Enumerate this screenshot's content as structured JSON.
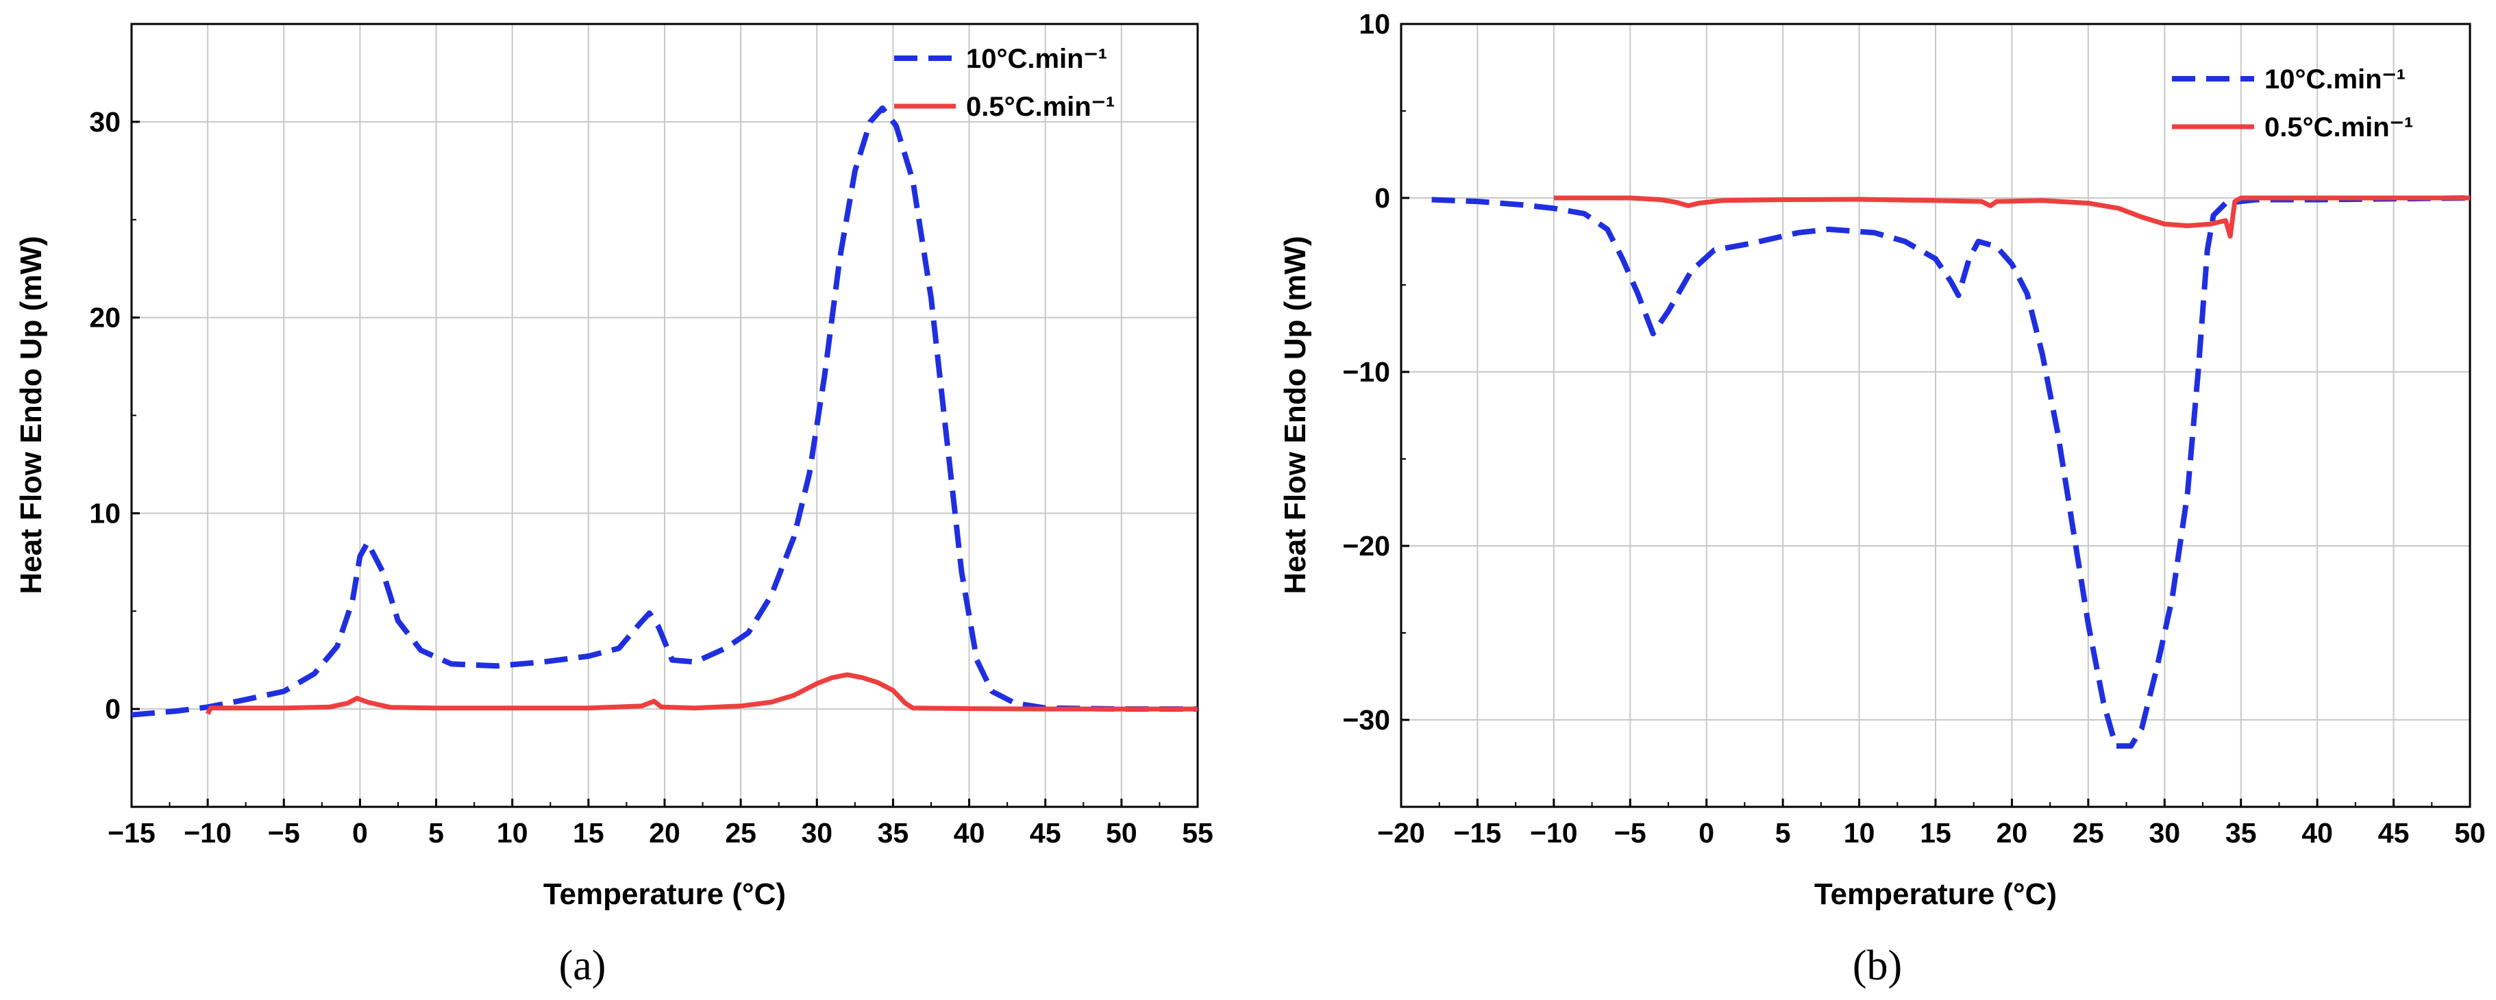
{
  "chart_data": [
    {
      "type": "line",
      "caption": "(a)",
      "xlabel": "Temperature (°C)",
      "ylabel": "Heat Flow Endo Up (mW)",
      "xlim": [
        -15,
        55
      ],
      "ylim": [
        -5,
        35
      ],
      "xticks": [
        -15,
        -10,
        -5,
        0,
        5,
        10,
        15,
        20,
        25,
        30,
        35,
        40,
        45,
        50,
        55
      ],
      "yticks": [
        0,
        10,
        20,
        30
      ],
      "xtick_labels": [
        "−15",
        "−10",
        "−5",
        "0",
        "5",
        "10",
        "15",
        "20",
        "25",
        "30",
        "35",
        "40",
        "45",
        "50",
        "55"
      ],
      "ytick_labels": [
        "0",
        "10",
        "20",
        "30"
      ],
      "grid": true,
      "legend_position": "top-right",
      "series": [
        {
          "name": "10°C.min⁻¹",
          "color": "#1f2fe0",
          "style": "dashed",
          "points": [
            [
              -15,
              -0.3
            ],
            [
              -12,
              -0.1
            ],
            [
              -10,
              0.1
            ],
            [
              -8,
              0.4
            ],
            [
              -5,
              0.9
            ],
            [
              -3,
              1.8
            ],
            [
              -1.5,
              3.2
            ],
            [
              -0.5,
              5.5
            ],
            [
              0,
              7.8
            ],
            [
              0.5,
              8.5
            ],
            [
              1.5,
              7.0
            ],
            [
              2.5,
              4.5
            ],
            [
              4,
              3.0
            ],
            [
              6,
              2.3
            ],
            [
              9,
              2.2
            ],
            [
              12,
              2.4
            ],
            [
              15,
              2.7
            ],
            [
              17,
              3.1
            ],
            [
              18.3,
              4.3
            ],
            [
              19,
              4.9
            ],
            [
              19.6,
              4.2
            ],
            [
              20.5,
              2.5
            ],
            [
              22,
              2.4
            ],
            [
              24,
              3.1
            ],
            [
              25.5,
              3.9
            ],
            [
              27,
              5.8
            ],
            [
              28.5,
              8.8
            ],
            [
              29.5,
              12.0
            ],
            [
              30.5,
              17.0
            ],
            [
              31.5,
              23.0
            ],
            [
              32.5,
              27.5
            ],
            [
              33.5,
              30.0
            ],
            [
              34.3,
              30.7
            ],
            [
              35.2,
              29.8
            ],
            [
              36.3,
              27.0
            ],
            [
              37.5,
              21.0
            ],
            [
              38.5,
              14.0
            ],
            [
              39.5,
              7.0
            ],
            [
              40.5,
              2.5
            ],
            [
              41.5,
              0.9
            ],
            [
              43,
              0.3
            ],
            [
              45,
              0.05
            ],
            [
              50,
              0.0
            ],
            [
              55,
              0.0
            ]
          ]
        },
        {
          "name": "0.5°C.min⁻¹",
          "color": "#ee3f3f",
          "style": "solid",
          "points": [
            [
              -10,
              -0.25
            ],
            [
              -9.8,
              0.05
            ],
            [
              -5,
              0.05
            ],
            [
              -2,
              0.1
            ],
            [
              -0.8,
              0.3
            ],
            [
              -0.2,
              0.55
            ],
            [
              0.5,
              0.35
            ],
            [
              2,
              0.08
            ],
            [
              5,
              0.05
            ],
            [
              10,
              0.05
            ],
            [
              15,
              0.05
            ],
            [
              18.5,
              0.15
            ],
            [
              19.3,
              0.4
            ],
            [
              19.8,
              0.1
            ],
            [
              22,
              0.05
            ],
            [
              25,
              0.15
            ],
            [
              27,
              0.35
            ],
            [
              28.5,
              0.7
            ],
            [
              30,
              1.3
            ],
            [
              31,
              1.6
            ],
            [
              32,
              1.75
            ],
            [
              33,
              1.6
            ],
            [
              34,
              1.35
            ],
            [
              35,
              0.95
            ],
            [
              35.8,
              0.3
            ],
            [
              36.3,
              0.05
            ],
            [
              40,
              0.02
            ],
            [
              45,
              0.0
            ],
            [
              50,
              0.0
            ],
            [
              55,
              0.0
            ]
          ]
        }
      ]
    },
    {
      "type": "line",
      "caption": "(b)",
      "xlabel": "Temperature (°C)",
      "ylabel": "Heat Flow Endo Up (mW)",
      "xlim": [
        -20,
        50
      ],
      "ylim": [
        -35,
        10
      ],
      "xticks": [
        -20,
        -15,
        -10,
        -5,
        0,
        5,
        10,
        15,
        20,
        25,
        30,
        35,
        40,
        45,
        50
      ],
      "yticks": [
        -30,
        -20,
        -10,
        0,
        10
      ],
      "xtick_labels": [
        "−20",
        "−15",
        "−10",
        "−5",
        "0",
        "5",
        "10",
        "15",
        "20",
        "25",
        "30",
        "35",
        "40",
        "45",
        "50"
      ],
      "ytick_labels": [
        "−30",
        "−20",
        "−10",
        "0",
        "10"
      ],
      "grid": true,
      "legend_position": "top-right",
      "series": [
        {
          "name": "10°C.min⁻¹",
          "color": "#1f2fe0",
          "style": "dashed",
          "points": [
            [
              -18,
              -0.1
            ],
            [
              -15,
              -0.2
            ],
            [
              -12,
              -0.4
            ],
            [
              -10,
              -0.6
            ],
            [
              -8,
              -0.9
            ],
            [
              -6.5,
              -1.8
            ],
            [
              -5.5,
              -3.5
            ],
            [
              -4.5,
              -5.5
            ],
            [
              -3.5,
              -7.8
            ],
            [
              -2.5,
              -6.5
            ],
            [
              -1,
              -4.2
            ],
            [
              0.5,
              -3.0
            ],
            [
              3,
              -2.6
            ],
            [
              6,
              -2.0
            ],
            [
              8,
              -1.8
            ],
            [
              11,
              -2.0
            ],
            [
              13,
              -2.5
            ],
            [
              15,
              -3.5
            ],
            [
              16,
              -4.8
            ],
            [
              16.5,
              -5.6
            ],
            [
              17.2,
              -3.5
            ],
            [
              17.8,
              -2.5
            ],
            [
              19,
              -2.8
            ],
            [
              20,
              -3.8
            ],
            [
              21,
              -5.5
            ],
            [
              22,
              -9.0
            ],
            [
              23,
              -13.5
            ],
            [
              24,
              -19.0
            ],
            [
              25,
              -24.5
            ],
            [
              26,
              -29.0
            ],
            [
              26.8,
              -31.5
            ],
            [
              27.8,
              -31.5
            ],
            [
              28.5,
              -30.5
            ],
            [
              29.5,
              -27.0
            ],
            [
              30.5,
              -23.0
            ],
            [
              31.5,
              -17.0
            ],
            [
              32.2,
              -10.0
            ],
            [
              32.8,
              -3.0
            ],
            [
              33.2,
              -1.0
            ],
            [
              34,
              -0.3
            ],
            [
              36,
              -0.1
            ],
            [
              40,
              -0.1
            ],
            [
              45,
              -0.05
            ],
            [
              50,
              0.0
            ]
          ]
        },
        {
          "name": "0.5°C.min⁻¹",
          "color": "#ee3f3f",
          "style": "solid",
          "points": [
            [
              -10,
              0.0
            ],
            [
              -5,
              0.0
            ],
            [
              -3,
              -0.1
            ],
            [
              -2,
              -0.25
            ],
            [
              -1.2,
              -0.45
            ],
            [
              -0.5,
              -0.3
            ],
            [
              1,
              -0.15
            ],
            [
              5,
              -0.1
            ],
            [
              10,
              -0.08
            ],
            [
              15,
              -0.15
            ],
            [
              18,
              -0.2
            ],
            [
              18.6,
              -0.45
            ],
            [
              19,
              -0.2
            ],
            [
              22,
              -0.15
            ],
            [
              25,
              -0.3
            ],
            [
              27,
              -0.6
            ],
            [
              28.5,
              -1.1
            ],
            [
              30,
              -1.5
            ],
            [
              31.5,
              -1.6
            ],
            [
              33,
              -1.5
            ],
            [
              34,
              -1.3
            ],
            [
              34.3,
              -2.2
            ],
            [
              34.6,
              -0.2
            ],
            [
              35,
              0.0
            ],
            [
              40,
              0.0
            ],
            [
              45,
              0.0
            ],
            [
              50,
              0.0
            ]
          ]
        }
      ]
    }
  ]
}
